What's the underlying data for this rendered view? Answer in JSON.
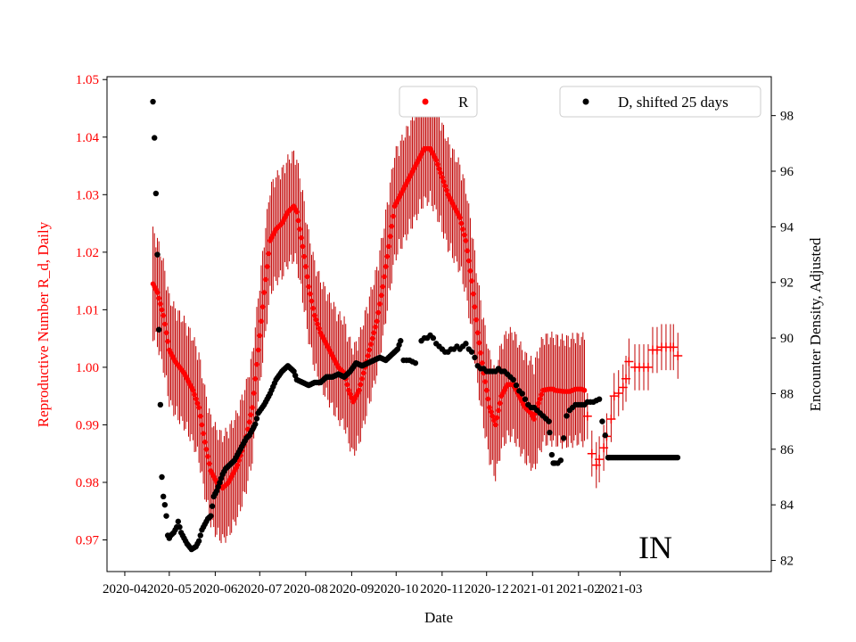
{
  "chart_data": {
    "type": "scatter",
    "state_label": "IN",
    "xlabel": "Date",
    "ylabel_left": "Reproductive Number R_d, Daily",
    "ylabel_right": "Encounter Density, Adjusted",
    "x_ticks": [
      "2020-04",
      "2020-05",
      "2020-06",
      "2020-07",
      "2020-08",
      "2020-09",
      "2020-10",
      "2020-11",
      "2020-12",
      "2021-01",
      "2021-02",
      "2021-03"
    ],
    "x_range_days": [
      -12,
      436
    ],
    "ylim_left": [
      0.9645,
      1.0505
    ],
    "ylim_right": [
      81.6,
      99.4
    ],
    "y_ticks_left": [
      "0.97",
      "0.98",
      "0.99",
      "1.00",
      "1.01",
      "1.02",
      "1.03",
      "1.04",
      "1.05"
    ],
    "y_ticks_right": [
      "82",
      "84",
      "86",
      "88",
      "90",
      "92",
      "94",
      "96",
      "98"
    ],
    "colors": {
      "R": "#ff0000",
      "D": "#000000",
      "error": "#c00000"
    },
    "legend": [
      {
        "label": "R",
        "color": "#ff0000",
        "position": "top-center"
      },
      {
        "label": "D, shifted 25 days",
        "color": "#000000",
        "position": "top-right"
      }
    ],
    "series": [
      {
        "name": "R",
        "axis": "left",
        "marker": "dot",
        "day_range": [
          19,
          310
        ],
        "knots": [
          [
            19,
            1.0145
          ],
          [
            22,
            1.013
          ],
          [
            26,
            1.009
          ],
          [
            30,
            1.003
          ],
          [
            34,
            1.001
          ],
          [
            40,
            0.999
          ],
          [
            46,
            0.996
          ],
          [
            50,
            0.993
          ],
          [
            54,
            0.987
          ],
          [
            58,
            0.982
          ],
          [
            62,
            0.98
          ],
          [
            66,
            0.979
          ],
          [
            70,
            0.98
          ],
          [
            76,
            0.983
          ],
          [
            82,
            0.988
          ],
          [
            86,
            0.993
          ],
          [
            90,
            1.003
          ],
          [
            94,
            1.013
          ],
          [
            98,
            1.022
          ],
          [
            102,
            1.024
          ],
          [
            106,
            1.025
          ],
          [
            110,
            1.027
          ],
          [
            114,
            1.028
          ],
          [
            116,
            1.027
          ],
          [
            120,
            1.021
          ],
          [
            124,
            1.014
          ],
          [
            128,
            1.009
          ],
          [
            132,
            1.006
          ],
          [
            136,
            1.004
          ],
          [
            140,
            1.002
          ],
          [
            144,
            1.0
          ],
          [
            148,
            0.999
          ],
          [
            151,
            0.996
          ],
          [
            154,
            0.994
          ],
          [
            158,
            0.996
          ],
          [
            162,
            1.0
          ],
          [
            166,
            1.004
          ],
          [
            170,
            1.008
          ],
          [
            174,
            1.014
          ],
          [
            178,
            1.021
          ],
          [
            182,
            1.028
          ],
          [
            186,
            1.03
          ],
          [
            190,
            1.032
          ],
          [
            194,
            1.034
          ],
          [
            198,
            1.036
          ],
          [
            202,
            1.038
          ],
          [
            206,
            1.038
          ],
          [
            210,
            1.036
          ],
          [
            214,
            1.033
          ],
          [
            218,
            1.03
          ],
          [
            222,
            1.028
          ],
          [
            226,
            1.026
          ],
          [
            230,
            1.022
          ],
          [
            234,
            1.015
          ],
          [
            238,
            1.006
          ],
          [
            242,
            0.999
          ],
          [
            246,
            0.993
          ],
          [
            250,
            0.99
          ],
          [
            254,
            0.995
          ],
          [
            258,
            0.997
          ],
          [
            262,
            0.997
          ],
          [
            266,
            0.995
          ],
          [
            270,
            0.993
          ],
          [
            274,
            0.992
          ],
          [
            276,
            0.991
          ],
          [
            278,
            0.993
          ],
          [
            282,
            0.996
          ],
          [
            286,
            0.9962
          ],
          [
            289,
            0.9962
          ],
          [
            290,
            0.996
          ],
          [
            296,
            0.9958
          ],
          [
            300,
            0.9958
          ],
          [
            304,
            0.9962
          ],
          [
            308,
            0.9962
          ],
          [
            310,
            0.996
          ]
        ],
        "error_halfwidth": 0.01
      },
      {
        "name": "R (plus markers)",
        "axis": "left",
        "marker": "plus",
        "points": [
          [
            312,
            0.9915
          ],
          [
            315,
            0.985
          ],
          [
            318,
            0.983
          ],
          [
            320,
            0.984
          ],
          [
            323,
            0.986
          ],
          [
            325,
            0.988
          ],
          [
            328,
            0.991
          ],
          [
            330,
            0.995
          ],
          [
            333,
            0.9955
          ],
          [
            336,
            0.9965
          ],
          [
            338,
            0.998
          ],
          [
            340,
            1.001
          ],
          [
            344,
            1.0
          ],
          [
            347,
            1.0
          ],
          [
            350,
            1.0
          ],
          [
            353,
            1.0
          ],
          [
            356,
            1.003
          ],
          [
            359,
            1.003
          ],
          [
            362,
            1.0035
          ],
          [
            365,
            1.0035
          ],
          [
            368,
            1.0035
          ],
          [
            370,
            1.0035
          ],
          [
            373,
            1.002
          ]
        ],
        "error_halfwidth": 0.004
      },
      {
        "name": "D, shifted 25 days",
        "axis": "right",
        "marker": "dot",
        "day_range": [
          19,
          308
        ],
        "knots": [
          [
            19,
            98.5
          ],
          [
            20,
            97.2
          ],
          [
            21,
            95.2
          ],
          [
            22,
            93.0
          ],
          [
            23,
            90.3
          ],
          [
            24,
            87.6
          ],
          [
            25,
            85.0
          ],
          [
            26,
            84.3
          ],
          [
            27,
            84.0
          ],
          [
            28,
            83.6
          ],
          [
            29,
            82.9
          ],
          [
            30,
            82.8
          ],
          [
            31,
            82.9
          ],
          [
            33,
            83.0
          ],
          [
            35,
            83.2
          ],
          [
            36,
            83.4
          ],
          [
            38,
            83.0
          ],
          [
            40,
            82.8
          ],
          [
            42,
            82.6
          ],
          [
            45,
            82.4
          ],
          [
            48,
            82.5
          ],
          [
            50,
            82.7
          ],
          [
            52,
            83.1
          ],
          [
            54,
            83.3
          ],
          [
            56,
            83.5
          ],
          [
            58,
            83.6
          ],
          [
            60,
            84.3
          ],
          [
            62,
            84.5
          ],
          [
            64,
            84.8
          ],
          [
            66,
            85.1
          ],
          [
            68,
            85.3
          ],
          [
            70,
            85.4
          ],
          [
            72,
            85.5
          ],
          [
            74,
            85.6
          ],
          [
            76,
            85.8
          ],
          [
            78,
            86.0
          ],
          [
            80,
            86.2
          ],
          [
            82,
            86.4
          ],
          [
            84,
            86.5
          ],
          [
            86,
            86.7
          ],
          [
            88,
            86.9
          ],
          [
            90,
            87.3
          ],
          [
            94,
            87.6
          ],
          [
            98,
            88.0
          ],
          [
            102,
            88.5
          ],
          [
            106,
            88.8
          ],
          [
            110,
            89.0
          ],
          [
            112,
            88.9
          ],
          [
            114,
            88.8
          ],
          [
            116,
            88.5
          ],
          [
            120,
            88.4
          ],
          [
            124,
            88.3
          ],
          [
            128,
            88.4
          ],
          [
            132,
            88.4
          ],
          [
            136,
            88.6
          ],
          [
            140,
            88.6
          ],
          [
            144,
            88.7
          ],
          [
            148,
            88.6
          ],
          [
            152,
            88.8
          ],
          [
            156,
            89.1
          ],
          [
            160,
            89.0
          ],
          [
            164,
            89.1
          ],
          [
            168,
            89.2
          ],
          [
            172,
            89.3
          ],
          [
            176,
            89.2
          ],
          [
            180,
            89.4
          ],
          [
            184,
            89.6
          ],
          [
            186,
            89.9
          ]
        ],
        "points": [
          [
            188,
            89.2
          ],
          [
            190,
            89.2
          ],
          [
            192,
            89.2
          ],
          [
            194,
            89.15
          ],
          [
            196,
            89.1
          ],
          [
            200,
            89.9
          ],
          [
            202,
            90.0
          ],
          [
            204,
            90.0
          ],
          [
            206,
            90.1
          ],
          [
            208,
            90.0
          ],
          [
            210,
            89.8
          ],
          [
            212,
            89.7
          ],
          [
            214,
            89.6
          ],
          [
            216,
            89.5
          ],
          [
            218,
            89.5
          ],
          [
            220,
            89.6
          ],
          [
            222,
            89.6
          ],
          [
            224,
            89.7
          ],
          [
            226,
            89.6
          ],
          [
            228,
            89.7
          ],
          [
            230,
            89.8
          ],
          [
            232,
            89.6
          ],
          [
            234,
            89.5
          ],
          [
            236,
            89.3
          ],
          [
            238,
            89.0
          ],
          [
            240,
            88.9
          ],
          [
            242,
            88.9
          ],
          [
            244,
            88.8
          ],
          [
            246,
            88.8
          ],
          [
            248,
            88.8
          ],
          [
            250,
            88.8
          ],
          [
            252,
            88.9
          ],
          [
            254,
            88.8
          ],
          [
            256,
            88.8
          ],
          [
            258,
            88.7
          ],
          [
            260,
            88.6
          ],
          [
            262,
            88.5
          ],
          [
            264,
            88.3
          ],
          [
            266,
            88.1
          ],
          [
            268,
            88.0
          ],
          [
            270,
            87.8
          ],
          [
            272,
            87.6
          ],
          [
            274,
            87.5
          ],
          [
            276,
            87.5
          ],
          [
            278,
            87.4
          ],
          [
            280,
            87.3
          ],
          [
            282,
            87.2
          ],
          [
            284,
            87.1
          ],
          [
            286,
            87.0
          ],
          [
            286.5,
            86.6
          ],
          [
            288,
            85.8
          ],
          [
            289,
            85.5
          ],
          [
            290,
            85.5
          ],
          [
            292,
            85.5
          ],
          [
            294,
            85.6
          ],
          [
            296,
            86.4
          ],
          [
            298,
            87.2
          ],
          [
            300,
            87.4
          ],
          [
            302,
            87.5
          ],
          [
            304,
            87.6
          ],
          [
            306,
            87.6
          ],
          [
            308,
            87.6
          ],
          [
            310,
            87.6
          ],
          [
            312,
            87.7
          ],
          [
            314,
            87.7
          ],
          [
            316,
            87.7
          ],
          [
            318,
            87.75
          ],
          [
            320,
            87.8
          ],
          [
            322,
            87.0
          ],
          [
            324,
            86.5
          ],
          [
            326,
            85.7
          ]
        ],
        "flat_segment": {
          "day_range": [
            326,
            373
          ],
          "value": 85.7
        }
      }
    ]
  }
}
